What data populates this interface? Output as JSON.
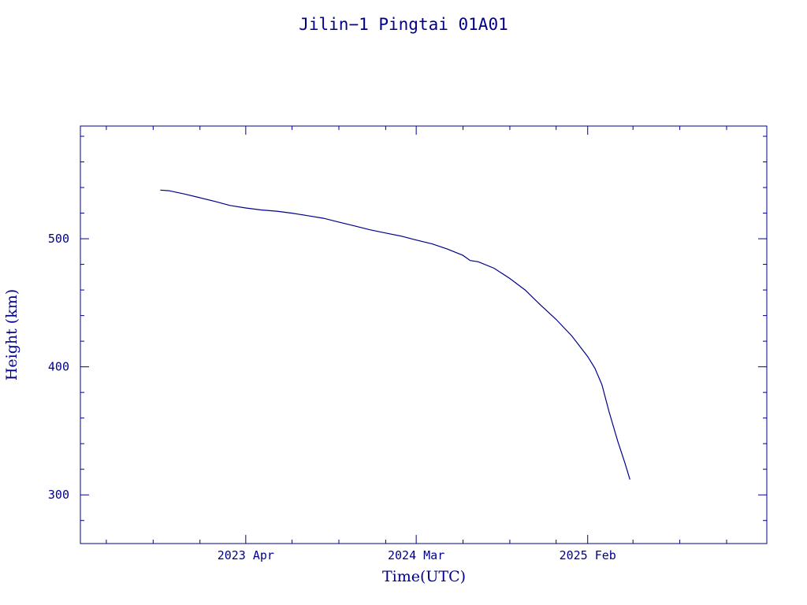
{
  "chart_data": {
    "type": "line",
    "title": "Jilin−1 Pingtai 01A01",
    "xlabel": "Time(UTC)",
    "ylabel": "Height (km)",
    "x_tick_labels": [
      "2023 Apr",
      "2024 Mar",
      "2025 Feb"
    ],
    "y_tick_labels": [
      "300",
      "400",
      "500"
    ],
    "y_ticks": [
      300,
      400,
      500
    ],
    "ylim": [
      262,
      588
    ],
    "xlim": [
      "2022-05-11",
      "2026-01-19"
    ],
    "x_tick_dates": [
      "2023-04-01",
      "2024-03-01",
      "2025-02-01"
    ],
    "x_minor_tick_dates": [
      "2022-07-01",
      "2022-10-01",
      "2023-01-01",
      "2023-07-01",
      "2023-10-01",
      "2024-01-01",
      "2024-06-01",
      "2024-09-01",
      "2024-12-01",
      "2025-05-01",
      "2025-08-01",
      "2025-11-01"
    ],
    "y_minor_step": 20,
    "grid": false,
    "series": [
      {
        "x": [
          "2022-10-15",
          "2022-11-01",
          "2022-12-01",
          "2023-01-01",
          "2023-02-01",
          "2023-03-01",
          "2023-04-01",
          "2023-05-01",
          "2023-06-01",
          "2023-07-01",
          "2023-08-01",
          "2023-09-01",
          "2023-10-01",
          "2023-11-01",
          "2023-12-01",
          "2024-01-01",
          "2024-02-01",
          "2024-03-01",
          "2024-04-01",
          "2024-05-01",
          "2024-06-01",
          "2024-06-15",
          "2024-07-01",
          "2024-08-01",
          "2024-09-01",
          "2024-10-01",
          "2024-11-01",
          "2024-12-01",
          "2025-01-01",
          "2025-02-01",
          "2025-02-15",
          "2025-03-01",
          "2025-03-15",
          "2025-04-01",
          "2025-04-15",
          "2025-04-25"
        ],
        "y": [
          538,
          537.5,
          535,
          532,
          529,
          526,
          524,
          522.5,
          521.5,
          520,
          518,
          516,
          513,
          510,
          507,
          504.5,
          502,
          499,
          496,
          492,
          487,
          483,
          482,
          477,
          469,
          460,
          448,
          437,
          424,
          408,
          399,
          386,
          365,
          342,
          325,
          312
        ]
      }
    ]
  }
}
